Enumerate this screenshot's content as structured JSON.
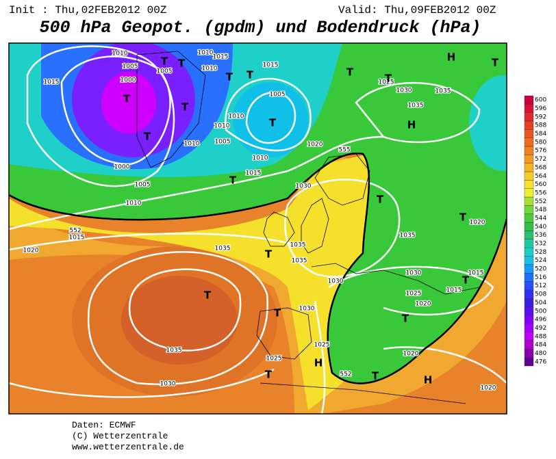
{
  "header": {
    "init": "Init : Thu,02FEB2012 00Z",
    "valid": "Valid: Thu,09FEB2012 00Z",
    "title": "500 hPa Geopot. (gpdm) und Bodendruck (hPa)"
  },
  "map": {
    "labels": [
      "1010",
      "1005",
      "1000",
      "1015",
      "1005",
      "T",
      "T",
      "T",
      "T",
      "T",
      "1010",
      "1015",
      "1010",
      "1015",
      "T",
      "T",
      "1005",
      "T",
      "1010",
      "1010",
      "1010",
      "1005",
      "1010",
      "1015",
      "T",
      "1000",
      "1005",
      "1010",
      "1015",
      "1020",
      "552",
      "1035",
      "T",
      "1035",
      "1030",
      "1020",
      "555",
      "1030",
      "T",
      "1035",
      "1035",
      "T",
      "1035",
      "1030",
      "1030",
      "T",
      "1025",
      "T",
      "H",
      "1025",
      "552",
      "T",
      "1030",
      "1025",
      "1020",
      "1015",
      "1015",
      "T",
      "T",
      "1020",
      "1020",
      "H",
      "1035",
      "H",
      "H",
      "T",
      "1030",
      "1025",
      "T",
      "T",
      "1035",
      "T",
      "1020"
    ]
  },
  "legend": {
    "labels": [
      600,
      596,
      592,
      588,
      584,
      580,
      576,
      572,
      568,
      564,
      560,
      556,
      552,
      548,
      544,
      540,
      536,
      532,
      528,
      524,
      520,
      516,
      512,
      508,
      504,
      500,
      496,
      492,
      488,
      484,
      480,
      476
    ]
  },
  "footer": {
    "lines": [
      "Daten: ECMWF",
      "(C) Wetterzentrale",
      "www.wetterzentrale.de"
    ]
  }
}
